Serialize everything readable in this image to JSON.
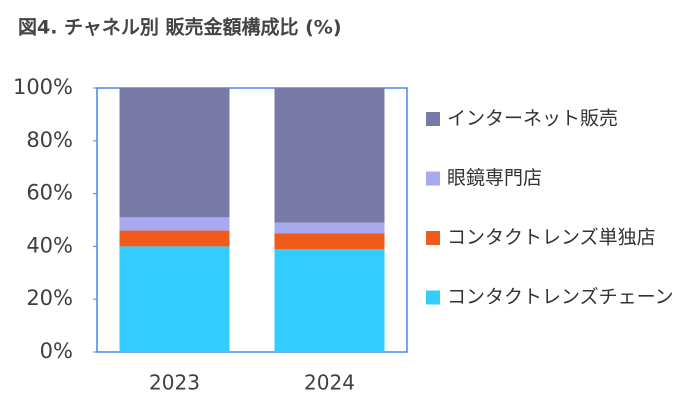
{
  "chart_data": {
    "type": "stacked_bar_100",
    "title": "図4. チャネル別 販売金額構成比 (%)",
    "categories": [
      "2023",
      "2024"
    ],
    "series": [
      {
        "name": "コンタクトレンズチェーン",
        "color": "#33ccff",
        "values": [
          40,
          39
        ]
      },
      {
        "name": "コンタクトレンズ単独店",
        "color": "#f05a1a",
        "values": [
          6,
          6
        ]
      },
      {
        "name": "眼鏡専門店",
        "color": "#a9a9f0",
        "values": [
          5,
          4
        ]
      },
      {
        "name": "インターネット販売",
        "color": "#7a7aa8",
        "values": [
          49,
          51
        ]
      }
    ],
    "ylim": [
      0,
      100
    ],
    "yticks": [
      {
        "value": 0,
        "label": "0%"
      },
      {
        "value": 20,
        "label": "20%"
      },
      {
        "value": 40,
        "label": "40%"
      },
      {
        "value": 60,
        "label": "60%"
      },
      {
        "value": 80,
        "label": "80%"
      },
      {
        "value": 100,
        "label": "100%"
      }
    ],
    "legend": "right"
  }
}
